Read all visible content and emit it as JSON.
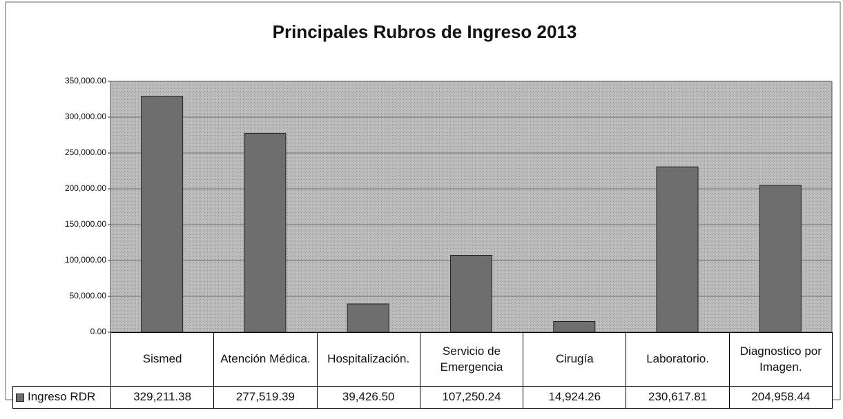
{
  "chart_data": {
    "type": "bar",
    "title": "Principales Rubros de Ingreso 2013",
    "categories": [
      "Sismed",
      "Atención Médica.",
      "Hospitalización.",
      "Servicio de Emergencia",
      "Cirugía",
      "Laboratorio.",
      "Diagnostico por Imagen."
    ],
    "series": [
      {
        "name": "Ingreso RDR",
        "color": "#6e6e6e",
        "values": [
          329211.38,
          277519.39,
          39426.5,
          107250.24,
          14924.26,
          230617.81,
          204958.44
        ],
        "value_labels": [
          "329,211.38",
          "277,519.39",
          "39,426.50",
          "107,250.24",
          "14,924.26",
          "230,617.81",
          "204,958.44"
        ]
      }
    ],
    "ylim": [
      0,
      350000
    ],
    "yticks": [
      {
        "value": 0,
        "label": "0.00"
      },
      {
        "value": 50000,
        "label": "50,000.00"
      },
      {
        "value": 100000,
        "label": "100,000.00"
      },
      {
        "value": 150000,
        "label": "150,000.00"
      },
      {
        "value": 200000,
        "label": "200,000.00"
      },
      {
        "value": 250000,
        "label": "250,000.00"
      },
      {
        "value": 300000,
        "label": "300,000.00"
      },
      {
        "value": 350000,
        "label": "350,000.00"
      }
    ],
    "grid": true
  }
}
